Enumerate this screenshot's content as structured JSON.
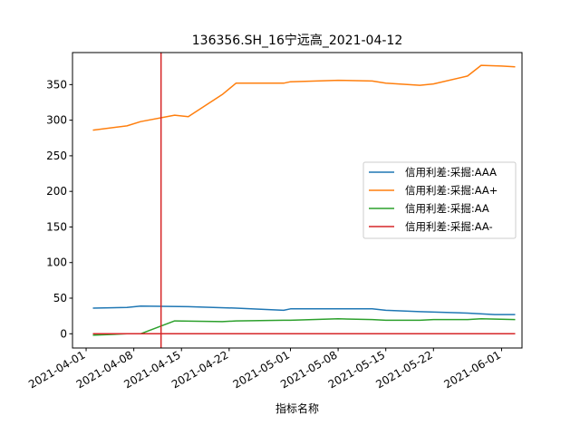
{
  "chart_data": {
    "type": "line",
    "title": "136356.SH_16宁远高_2021-04-12",
    "xlabel": "指标名称",
    "ylabel": "",
    "x_type": "date",
    "xlim": [
      "2021-03-30",
      "2021-06-04"
    ],
    "ylim": [
      -20,
      395
    ],
    "x_ticks": [
      "2021-04-01",
      "2021-04-08",
      "2021-04-15",
      "2021-04-22",
      "2021-05-01",
      "2021-05-08",
      "2021-05-15",
      "2021-05-22",
      "2021-06-01"
    ],
    "y_ticks": [
      0,
      50,
      100,
      150,
      200,
      250,
      300,
      350
    ],
    "grid": false,
    "legend_position": "center-right",
    "vline": {
      "x": "2021-04-12",
      "color": "#d62728"
    },
    "series": [
      {
        "name": "信用利差:采掘:AAA",
        "color": "#1f77b4",
        "points": [
          [
            "2021-04-02",
            36
          ],
          [
            "2021-04-07",
            37
          ],
          [
            "2021-04-09",
            39
          ],
          [
            "2021-04-16",
            38
          ],
          [
            "2021-04-23",
            36
          ],
          [
            "2021-04-30",
            33
          ],
          [
            "2021-05-01",
            35
          ],
          [
            "2021-05-08",
            35
          ],
          [
            "2021-05-13",
            35
          ],
          [
            "2021-05-15",
            33
          ],
          [
            "2021-05-20",
            31
          ],
          [
            "2021-05-27",
            29
          ],
          [
            "2021-05-31",
            27
          ],
          [
            "2021-06-03",
            27
          ]
        ]
      },
      {
        "name": "信用利差:采掘:AA+",
        "color": "#ff7f0e",
        "points": [
          [
            "2021-04-02",
            286
          ],
          [
            "2021-04-07",
            292
          ],
          [
            "2021-04-09",
            298
          ],
          [
            "2021-04-14",
            307
          ],
          [
            "2021-04-16",
            305
          ],
          [
            "2021-04-21",
            336
          ],
          [
            "2021-04-23",
            352
          ],
          [
            "2021-04-30",
            352
          ],
          [
            "2021-05-01",
            354
          ],
          [
            "2021-05-08",
            356
          ],
          [
            "2021-05-13",
            355
          ],
          [
            "2021-05-15",
            352
          ],
          [
            "2021-05-20",
            349
          ],
          [
            "2021-05-22",
            351
          ],
          [
            "2021-05-27",
            362
          ],
          [
            "2021-05-29",
            377
          ],
          [
            "2021-06-01",
            376
          ],
          [
            "2021-06-03",
            375
          ]
        ]
      },
      {
        "name": "信用利差:采掘:AA",
        "color": "#2ca02c",
        "points": [
          [
            "2021-04-02",
            -2
          ],
          [
            "2021-04-07",
            0
          ],
          [
            "2021-04-09",
            0
          ],
          [
            "2021-04-14",
            18
          ],
          [
            "2021-04-21",
            17
          ],
          [
            "2021-04-23",
            18
          ],
          [
            "2021-04-30",
            19
          ],
          [
            "2021-05-01",
            19
          ],
          [
            "2021-05-08",
            21
          ],
          [
            "2021-05-13",
            20
          ],
          [
            "2021-05-15",
            19
          ],
          [
            "2021-05-20",
            19
          ],
          [
            "2021-05-22",
            20
          ],
          [
            "2021-05-27",
            20
          ],
          [
            "2021-05-29",
            21
          ],
          [
            "2021-06-03",
            20
          ]
        ]
      },
      {
        "name": "信用利差:采掘:AA-",
        "color": "#d62728",
        "points": [
          [
            "2021-04-02",
            0
          ],
          [
            "2021-06-03",
            0
          ]
        ]
      }
    ]
  }
}
